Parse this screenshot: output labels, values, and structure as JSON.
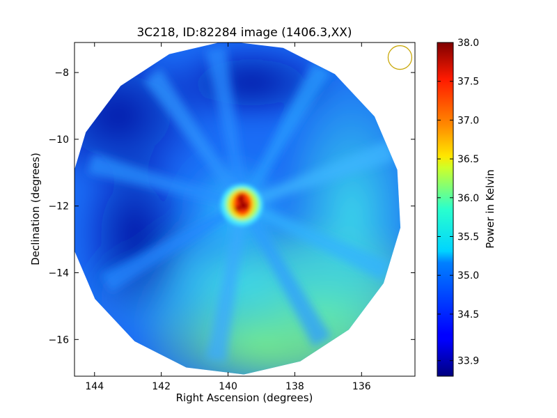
{
  "chart_data": {
    "type": "heatmap",
    "title": "3C218, ID:82284 image (1406.3,XX)",
    "xlabel": "Right Ascension (degrees)",
    "ylabel": "Declination (degrees)",
    "xlim": [
      144.6,
      134.4
    ],
    "ylim": [
      -17.1,
      -7.1
    ],
    "x_ticks": [
      144,
      142,
      140,
      138,
      136
    ],
    "x_tick_labels": [
      "144",
      "142",
      "140",
      "138",
      "136"
    ],
    "y_ticks": [
      -8,
      -10,
      -12,
      -14,
      -16
    ],
    "y_tick_labels": [
      "−8",
      "−10",
      "−12",
      "−14",
      "−16"
    ],
    "colorbar": {
      "label": "Power in Kelvin",
      "range": [
        33.7,
        38.0
      ],
      "ticks": [
        33.9,
        34.5,
        35.0,
        35.5,
        36.0,
        36.5,
        37.0,
        37.5,
        38.0
      ],
      "tick_labels": [
        "33.9",
        "34.5",
        "35.0",
        "35.5",
        "36.0",
        "36.5",
        "37.0",
        "37.5",
        "38.0"
      ],
      "colormap": "jet"
    },
    "field": {
      "center": {
        "ra": 139.8,
        "dec": -12.05
      },
      "radius_deg": 5.0,
      "background_level": 34.5
    },
    "source": {
      "ra": 139.55,
      "dec": -11.95,
      "peak_level": 38.0
    },
    "beam": {
      "ra": 134.85,
      "dec": -7.55,
      "color": "#c9a80a"
    }
  }
}
